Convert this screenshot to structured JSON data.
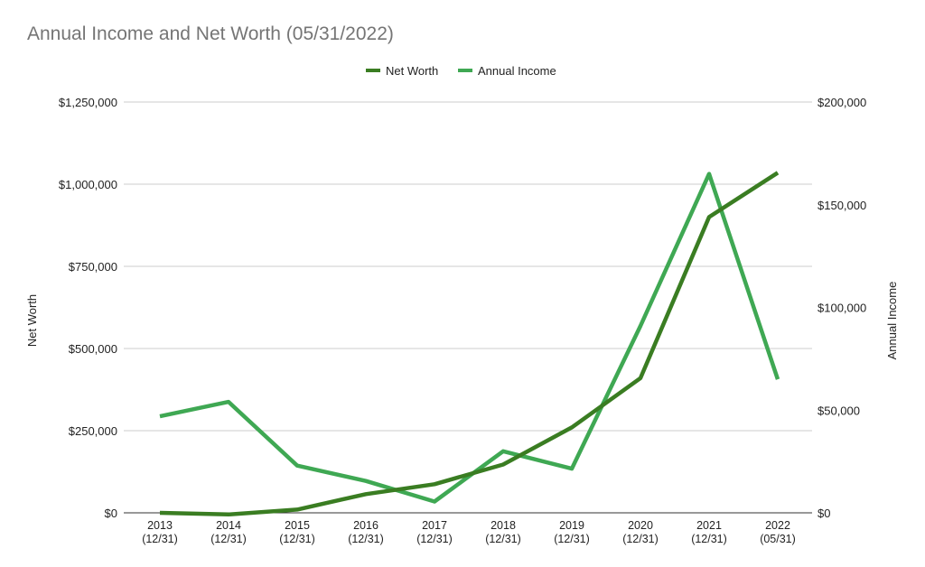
{
  "chart_data": {
    "type": "line",
    "title": "Annual Income and Net Worth (05/31/2022)",
    "legend_position": "top-center",
    "grid": true,
    "categories": [
      [
        "2013",
        "(12/31)"
      ],
      [
        "2014",
        "(12/31)"
      ],
      [
        "2015",
        "(12/31)"
      ],
      [
        "2016",
        "(12/31)"
      ],
      [
        "2017",
        "(12/31)"
      ],
      [
        "2018",
        "(12/31)"
      ],
      [
        "2019",
        "(12/31)"
      ],
      [
        "2020",
        "(12/31)"
      ],
      [
        "2021",
        "(12/31)"
      ],
      [
        "2022",
        "(05/31)"
      ]
    ],
    "y_left": {
      "label": "Net Worth",
      "min": 0,
      "max": 1250000,
      "ticks": [
        0,
        250000,
        500000,
        750000,
        1000000,
        1250000
      ],
      "tick_labels": [
        "$0",
        "$250,000",
        "$500,000",
        "$750,000",
        "$1,000,000",
        "$1,250,000"
      ]
    },
    "y_right": {
      "label": "Annual Income",
      "min": 0,
      "max": 200000,
      "ticks": [
        0,
        50000,
        100000,
        150000,
        200000
      ],
      "tick_labels": [
        "$0",
        "$50,000",
        "$100,000",
        "$150,000",
        "$200,000"
      ]
    },
    "series": [
      {
        "name": "Net Worth",
        "axis": "left",
        "color": "#3a7d22",
        "values": [
          0,
          -5000,
          10000,
          57000,
          87000,
          147000,
          260000,
          410000,
          900000,
          1035000
        ]
      },
      {
        "name": "Annual Income",
        "axis": "right",
        "color": "#3fa853",
        "values": [
          47000,
          54000,
          23000,
          15500,
          5500,
          30000,
          21500,
          91000,
          165000,
          65000
        ]
      }
    ]
  }
}
